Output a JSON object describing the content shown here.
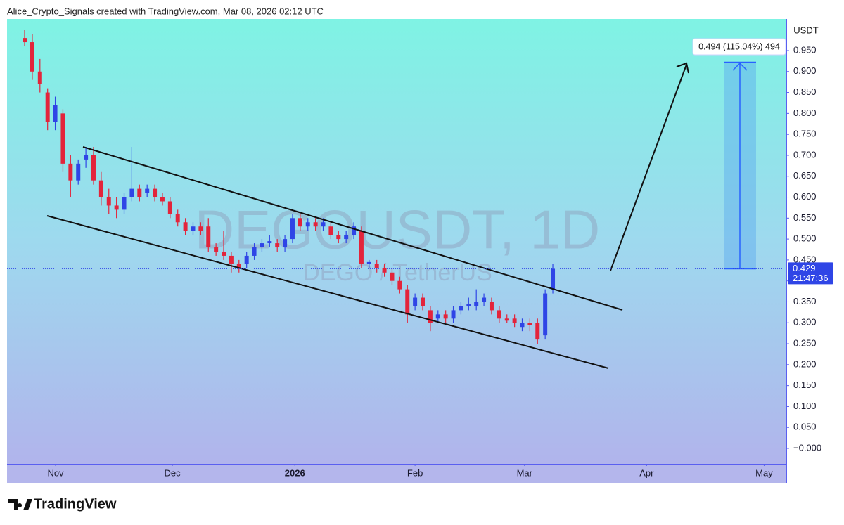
{
  "header": {
    "attribution": "Alice_Crypto_Signals created with TradingView.com, Mar 08, 2026 02:12 UTC"
  },
  "chart_data": {
    "type": "candlestick",
    "title": "DEGOUSDT, 1D",
    "subtitle": "DEGO / TetherUS",
    "y_axis_label": "USDT",
    "annotation": "0.494 (115.04%) 494",
    "last_price": 0.429,
    "countdown": "21:47:36",
    "up_color": "#2f45e6",
    "down_color": "#e3243b",
    "open": [
      0.98,
      0.97,
      0.9,
      0.85,
      0.78,
      0.8,
      0.68,
      0.64,
      0.69,
      0.7,
      0.64,
      0.6,
      0.58,
      0.57,
      0.6,
      0.62,
      0.61,
      0.62,
      0.6,
      0.59,
      0.56,
      0.54,
      0.52,
      0.53,
      0.53,
      0.48,
      0.47,
      0.46,
      0.44,
      0.44,
      0.46,
      0.48,
      0.49,
      0.49,
      0.48,
      0.5,
      0.55,
      0.53,
      0.54,
      0.53,
      0.53,
      0.51,
      0.5,
      0.51,
      0.52,
      0.44,
      0.44,
      0.43,
      0.42,
      0.4,
      0.38,
      0.34,
      0.36,
      0.33,
      0.31,
      0.32,
      0.31,
      0.33,
      0.34,
      0.34,
      0.35,
      0.35,
      0.33,
      0.31,
      0.31,
      0.29,
      0.3,
      0.3,
      0.27,
      0.38
    ],
    "high": [
      1.0,
      0.99,
      0.93,
      0.86,
      0.84,
      0.81,
      0.7,
      0.69,
      0.72,
      0.72,
      0.66,
      0.62,
      0.6,
      0.61,
      0.72,
      0.63,
      0.63,
      0.63,
      0.61,
      0.6,
      0.57,
      0.55,
      0.54,
      0.54,
      0.55,
      0.49,
      0.52,
      0.47,
      0.45,
      0.47,
      0.49,
      0.5,
      0.51,
      0.5,
      0.51,
      0.56,
      0.56,
      0.55,
      0.55,
      0.55,
      0.54,
      0.52,
      0.52,
      0.54,
      0.53,
      0.45,
      0.45,
      0.44,
      0.43,
      0.41,
      0.39,
      0.37,
      0.37,
      0.34,
      0.33,
      0.33,
      0.34,
      0.35,
      0.36,
      0.38,
      0.37,
      0.36,
      0.34,
      0.32,
      0.32,
      0.31,
      0.31,
      0.31,
      0.38,
      0.44
    ],
    "low": [
      0.96,
      0.88,
      0.85,
      0.76,
      0.76,
      0.66,
      0.6,
      0.63,
      0.67,
      0.63,
      0.58,
      0.56,
      0.55,
      0.56,
      0.59,
      0.59,
      0.6,
      0.59,
      0.58,
      0.55,
      0.53,
      0.51,
      0.51,
      0.51,
      0.47,
      0.46,
      0.45,
      0.42,
      0.42,
      0.43,
      0.45,
      0.47,
      0.48,
      0.47,
      0.47,
      0.49,
      0.52,
      0.52,
      0.52,
      0.52,
      0.5,
      0.49,
      0.49,
      0.5,
      0.43,
      0.43,
      0.42,
      0.41,
      0.39,
      0.37,
      0.3,
      0.33,
      0.33,
      0.28,
      0.3,
      0.3,
      0.3,
      0.32,
      0.33,
      0.33,
      0.34,
      0.32,
      0.3,
      0.3,
      0.29,
      0.28,
      0.28,
      0.25,
      0.26,
      0.37
    ],
    "close": [
      0.97,
      0.9,
      0.87,
      0.78,
      0.82,
      0.68,
      0.64,
      0.68,
      0.7,
      0.64,
      0.6,
      0.58,
      0.57,
      0.6,
      0.62,
      0.6,
      0.62,
      0.6,
      0.59,
      0.56,
      0.54,
      0.52,
      0.53,
      0.52,
      0.48,
      0.47,
      0.46,
      0.44,
      0.43,
      0.46,
      0.48,
      0.49,
      0.495,
      0.48,
      0.5,
      0.55,
      0.53,
      0.54,
      0.53,
      0.54,
      0.51,
      0.5,
      0.51,
      0.53,
      0.44,
      0.445,
      0.43,
      0.42,
      0.4,
      0.38,
      0.32,
      0.36,
      0.34,
      0.3,
      0.32,
      0.31,
      0.33,
      0.34,
      0.345,
      0.35,
      0.36,
      0.33,
      0.31,
      0.305,
      0.3,
      0.3,
      0.295,
      0.26,
      0.37,
      0.429
    ],
    "xlim": [
      -2.3,
      99.5
    ],
    "xticks": [
      {
        "value": 4.04,
        "label": "Nov"
      },
      {
        "value": 19.3,
        "label": "Dec"
      },
      {
        "value": 35.3,
        "label": "2026"
      },
      {
        "value": 51.0,
        "label": "Feb"
      },
      {
        "value": 65.3,
        "label": "Mar"
      },
      {
        "value": 81.25,
        "label": "Apr"
      },
      {
        "value": 96.6,
        "label": "May"
      }
    ],
    "ylim": [
      -0.0369,
      1.0255
    ],
    "yticks": [
      {
        "value": 0,
        "label": "−0.000"
      },
      {
        "value": 0.05,
        "label": "0.050"
      },
      {
        "value": 0.1,
        "label": "0.100"
      },
      {
        "value": 0.15,
        "label": "0.150"
      },
      {
        "value": 0.2,
        "label": "0.200"
      },
      {
        "value": 0.25,
        "label": "0.250"
      },
      {
        "value": 0.3,
        "label": "0.300"
      },
      {
        "value": 0.35,
        "label": "0.350"
      },
      {
        "value": 0.4,
        "label": "0.400"
      },
      {
        "value": 0.45,
        "label": "0.450"
      },
      {
        "value": 0.5,
        "label": "0.500"
      },
      {
        "value": 0.55,
        "label": "0.550"
      },
      {
        "value": 0.6,
        "label": "0.600"
      },
      {
        "value": 0.65,
        "label": "0.650"
      },
      {
        "value": 0.7,
        "label": "0.700"
      },
      {
        "value": 0.75,
        "label": "0.750"
      },
      {
        "value": 0.8,
        "label": "0.800"
      },
      {
        "value": 0.85,
        "label": "0.850"
      },
      {
        "value": 0.9,
        "label": "0.900"
      },
      {
        "value": 0.95,
        "label": "0.950"
      }
    ]
  },
  "footer": {
    "brand": "TradingView"
  }
}
